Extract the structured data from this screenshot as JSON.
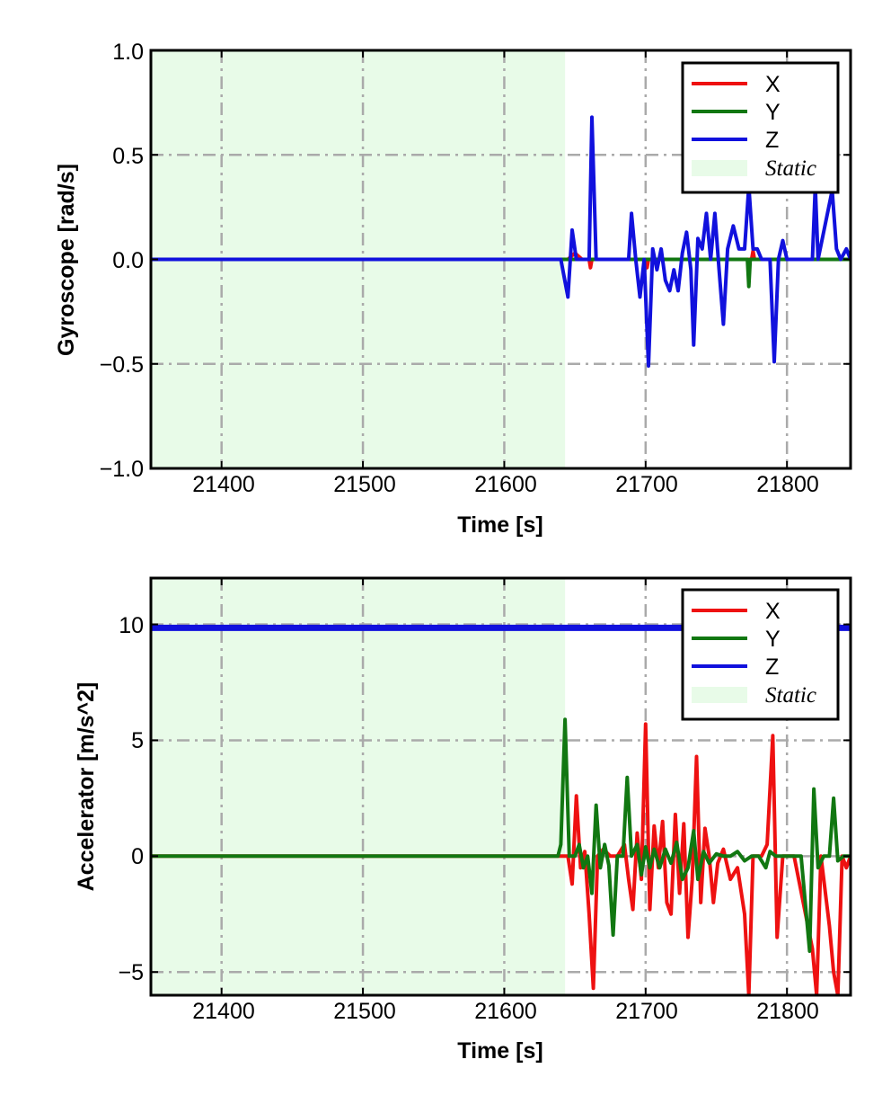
{
  "colors": {
    "x": "#ee1111",
    "y": "#117711",
    "z": "#1111dd",
    "static_fill": "#e8fbe8",
    "grid": "#aaaaaa"
  },
  "chart_data": [
    {
      "type": "line",
      "ylabel": "Gyroscope [rad/s]",
      "xlabel": "Time [s]",
      "xlim": [
        21350,
        21845
      ],
      "ylim": [
        -1.0,
        1.0
      ],
      "xticks": [
        21400,
        21500,
        21600,
        21700,
        21800
      ],
      "xtick_labels": [
        "21400",
        "21500",
        "21600",
        "21700",
        "21800"
      ],
      "yticks": [
        -1.0,
        -0.5,
        0.0,
        0.5,
        1.0
      ],
      "ytick_labels": [
        "−1.0",
        "−0.5",
        "0.0",
        "0.5",
        "1.0"
      ],
      "grid": true,
      "legend_position": "top-right",
      "static_region": {
        "label": "Static",
        "x_start": 21350,
        "x_end": 21643
      },
      "series": [
        {
          "name": "X",
          "color_key": "x",
          "points": [
            [
              21350,
              0
            ],
            [
              21645,
              0
            ],
            [
              21650,
              0.03
            ],
            [
              21655,
              0
            ],
            [
              21660,
              0
            ],
            [
              21661,
              -0.04
            ],
            [
              21662,
              0
            ],
            [
              21700,
              0
            ],
            [
              21701,
              -0.04
            ],
            [
              21702,
              0
            ],
            [
              21775,
              0
            ],
            [
              21776,
              0.04
            ],
            [
              21777,
              0
            ],
            [
              21845,
              0
            ]
          ]
        },
        {
          "name": "Y",
          "color_key": "y",
          "points": [
            [
              21350,
              0
            ],
            [
              21660,
              0
            ],
            [
              21662,
              0
            ],
            [
              21663,
              0
            ],
            [
              21772,
              0
            ],
            [
              21773,
              -0.13
            ],
            [
              21774,
              0
            ],
            [
              21845,
              0
            ]
          ]
        },
        {
          "name": "Z",
          "color_key": "z",
          "points": [
            [
              21350,
              0
            ],
            [
              21640,
              0
            ],
            [
              21645,
              -0.18
            ],
            [
              21648,
              0.14
            ],
            [
              21651,
              0
            ],
            [
              21660,
              0
            ],
            [
              21662,
              0.68
            ],
            [
              21665,
              0
            ],
            [
              21688,
              0
            ],
            [
              21690,
              0.22
            ],
            [
              21693,
              0
            ],
            [
              21696,
              -0.18
            ],
            [
              21699,
              0
            ],
            [
              21702,
              -0.51
            ],
            [
              21705,
              0.05
            ],
            [
              21708,
              -0.05
            ],
            [
              21711,
              0.05
            ],
            [
              21714,
              -0.1
            ],
            [
              21717,
              -0.15
            ],
            [
              21720,
              -0.05
            ],
            [
              21723,
              -0.15
            ],
            [
              21726,
              0.03
            ],
            [
              21729,
              0.13
            ],
            [
              21732,
              -0.05
            ],
            [
              21734,
              -0.41
            ],
            [
              21737,
              0.1
            ],
            [
              21740,
              0.05
            ],
            [
              21743,
              0.22
            ],
            [
              21746,
              0
            ],
            [
              21749,
              0.22
            ],
            [
              21752,
              -0.05
            ],
            [
              21755,
              -0.31
            ],
            [
              21758,
              0.05
            ],
            [
              21762,
              0.16
            ],
            [
              21766,
              0.05
            ],
            [
              21770,
              0.05
            ],
            [
              21773,
              0.35
            ],
            [
              21776,
              0.05
            ],
            [
              21779,
              0.05
            ],
            [
              21782,
              0
            ],
            [
              21785,
              0
            ],
            [
              21788,
              0
            ],
            [
              21791,
              -0.49
            ],
            [
              21794,
              0
            ],
            [
              21797,
              0.09
            ],
            [
              21800,
              0
            ],
            [
              21818,
              0
            ],
            [
              21820,
              0.35
            ],
            [
              21822,
              0
            ],
            [
              21832,
              0.33
            ],
            [
              21835,
              0.05
            ],
            [
              21838,
              0
            ],
            [
              21842,
              0.05
            ],
            [
              21845,
              0
            ]
          ]
        }
      ]
    },
    {
      "type": "line",
      "ylabel": "Accelerator [m/s^2]",
      "xlabel": "Time [s]",
      "xlim": [
        21350,
        21845
      ],
      "ylim": [
        -6,
        12
      ],
      "xticks": [
        21400,
        21500,
        21600,
        21700,
        21800
      ],
      "xtick_labels": [
        "21400",
        "21500",
        "21600",
        "21700",
        "21800"
      ],
      "yticks": [
        -5,
        0,
        5,
        10
      ],
      "ytick_labels": [
        "−5",
        "0",
        "5",
        "10"
      ],
      "grid": true,
      "legend_position": "top-right",
      "static_region": {
        "label": "Static",
        "x_start": 21350,
        "x_end": 21643
      },
      "series": [
        {
          "name": "X",
          "color_key": "x",
          "points": [
            [
              21350,
              0
            ],
            [
              21645,
              0
            ],
            [
              21648,
              -1.2
            ],
            [
              21651,
              2.6
            ],
            [
              21654,
              -0.5
            ],
            [
              21657,
              0.2
            ],
            [
              21660,
              -2.5
            ],
            [
              21663,
              -5.7
            ],
            [
              21666,
              0
            ],
            [
              21670,
              0.3
            ],
            [
              21675,
              0
            ],
            [
              21680,
              0
            ],
            [
              21685,
              0.5
            ],
            [
              21688,
              -1
            ],
            [
              21691,
              -2.3
            ],
            [
              21694,
              1
            ],
            [
              21697,
              -1
            ],
            [
              21700,
              5.7
            ],
            [
              21703,
              -2.3
            ],
            [
              21706,
              1.3
            ],
            [
              21709,
              -0.5
            ],
            [
              21712,
              1.5
            ],
            [
              21715,
              -2
            ],
            [
              21718,
              -2.5
            ],
            [
              21721,
              1.8
            ],
            [
              21724,
              -1.6
            ],
            [
              21727,
              1.4
            ],
            [
              21730,
              -3.5
            ],
            [
              21733,
              -1
            ],
            [
              21736,
              4.3
            ],
            [
              21739,
              -2
            ],
            [
              21742,
              1.2
            ],
            [
              21745,
              0
            ],
            [
              21748,
              -2
            ],
            [
              21751,
              -0.3
            ],
            [
              21755,
              0.3
            ],
            [
              21760,
              -1
            ],
            [
              21765,
              -0.5
            ],
            [
              21770,
              -2.5
            ],
            [
              21773,
              -6
            ],
            [
              21776,
              0
            ],
            [
              21779,
              0
            ],
            [
              21782,
              0
            ],
            [
              21786,
              0.5
            ],
            [
              21790,
              5.2
            ],
            [
              21793,
              -3.5
            ],
            [
              21797,
              0
            ],
            [
              21800,
              0
            ],
            [
              21805,
              0
            ],
            [
              21818,
              -4
            ],
            [
              21821,
              -6
            ],
            [
              21824,
              0
            ],
            [
              21830,
              -3
            ],
            [
              21833,
              -5
            ],
            [
              21836,
              -6
            ],
            [
              21839,
              0
            ],
            [
              21842,
              -0.5
            ],
            [
              21845,
              0
            ]
          ]
        },
        {
          "name": "Y",
          "color_key": "y",
          "points": [
            [
              21350,
              0
            ],
            [
              21638,
              0
            ],
            [
              21640,
              0.5
            ],
            [
              21643,
              5.9
            ],
            [
              21646,
              0
            ],
            [
              21650,
              0
            ],
            [
              21653,
              0.5
            ],
            [
              21656,
              -0.5
            ],
            [
              21659,
              0
            ],
            [
              21662,
              -1.6
            ],
            [
              21665,
              2.2
            ],
            [
              21668,
              -0.5
            ],
            [
              21671,
              0.5
            ],
            [
              21674,
              -0.4
            ],
            [
              21677,
              -3.4
            ],
            [
              21680,
              0
            ],
            [
              21684,
              0
            ],
            [
              21687,
              3.4
            ],
            [
              21690,
              0
            ],
            [
              21694,
              0.5
            ],
            [
              21697,
              -0.8
            ],
            [
              21700,
              0.4
            ],
            [
              21703,
              -0.5
            ],
            [
              21706,
              0.3
            ],
            [
              21710,
              -0.5
            ],
            [
              21714,
              0.3
            ],
            [
              21718,
              -0.3
            ],
            [
              21722,
              0.6
            ],
            [
              21726,
              -1
            ],
            [
              21730,
              -0.5
            ],
            [
              21734,
              1.1
            ],
            [
              21737,
              -1
            ],
            [
              21741,
              0.2
            ],
            [
              21745,
              -0.3
            ],
            [
              21750,
              0.1
            ],
            [
              21755,
              0
            ],
            [
              21760,
              0
            ],
            [
              21765,
              0.2
            ],
            [
              21770,
              -0.2
            ],
            [
              21775,
              0
            ],
            [
              21780,
              0
            ],
            [
              21785,
              -0.5
            ],
            [
              21788,
              0.2
            ],
            [
              21792,
              0
            ],
            [
              21800,
              0
            ],
            [
              21810,
              0
            ],
            [
              21816,
              -4.1
            ],
            [
              21819,
              2.9
            ],
            [
              21822,
              -0.5
            ],
            [
              21826,
              0
            ],
            [
              21830,
              0
            ],
            [
              21833,
              2.5
            ],
            [
              21836,
              -0.2
            ],
            [
              21840,
              0
            ],
            [
              21845,
              0
            ]
          ]
        },
        {
          "name": "Z",
          "color_key": "z",
          "points": [
            [
              21350,
              9.85
            ],
            [
              21845,
              9.85
            ]
          ]
        }
      ]
    }
  ]
}
